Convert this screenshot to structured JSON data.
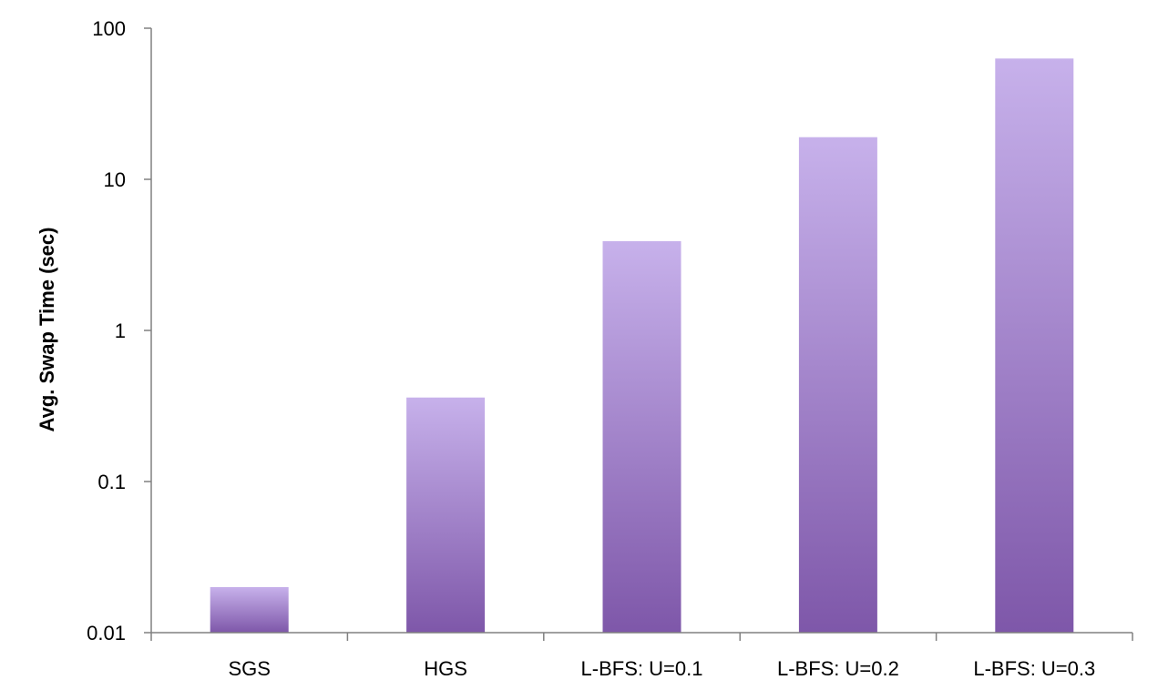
{
  "chart_data": {
    "type": "bar",
    "title": "",
    "xlabel": "",
    "ylabel": "Avg. Swap Time (sec)",
    "yscale": "log",
    "ylim": [
      0.01,
      100
    ],
    "yticks": [
      "0.01",
      "0.1",
      "1",
      "10",
      "100"
    ],
    "ytick_values": [
      0.01,
      0.1,
      1,
      10,
      100
    ],
    "grid": false,
    "legend": "none",
    "categories": [
      "SGS",
      "HGS",
      "L-BFS: U=0.1",
      "L-BFS: U=0.2",
      "L-BFS: U=0.3"
    ],
    "values": [
      0.02,
      0.36,
      3.9,
      19,
      63
    ],
    "colors": {
      "bar_top": "#C7B1EB",
      "bar_bottom": "#7E57A9",
      "axis": "#808080"
    }
  }
}
